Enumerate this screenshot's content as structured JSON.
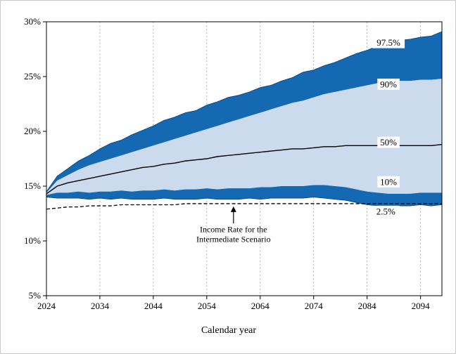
{
  "chart_data": {
    "type": "area",
    "title": "",
    "xlabel": "Calendar year",
    "ylabel": "",
    "xlim": [
      2024,
      2098
    ],
    "ylim": [
      5,
      30
    ],
    "grid": "vertical-dotted",
    "legend_position": "inline-labels",
    "x": [
      2024,
      2026,
      2028,
      2030,
      2032,
      2034,
      2036,
      2038,
      2040,
      2042,
      2044,
      2046,
      2048,
      2050,
      2052,
      2054,
      2056,
      2058,
      2060,
      2062,
      2064,
      2066,
      2068,
      2070,
      2072,
      2074,
      2076,
      2078,
      2080,
      2082,
      2084,
      2086,
      2088,
      2090,
      2092,
      2094,
      2096,
      2098
    ],
    "series": [
      {
        "name": "97.5%",
        "values": [
          14.5,
          15.9,
          16.6,
          17.3,
          17.8,
          18.4,
          18.9,
          19.2,
          19.7,
          20.1,
          20.5,
          21.0,
          21.3,
          21.7,
          21.9,
          22.4,
          22.7,
          23.1,
          23.3,
          23.6,
          24.0,
          24.2,
          24.6,
          24.9,
          25.4,
          25.6,
          26.0,
          26.3,
          26.7,
          27.1,
          27.4,
          27.8,
          28.0,
          28.3,
          28.4,
          28.6,
          28.7,
          29.1
        ]
      },
      {
        "name": "90%",
        "values": [
          14.4,
          15.5,
          16.0,
          16.5,
          16.9,
          17.2,
          17.5,
          17.8,
          18.1,
          18.4,
          18.7,
          19.0,
          19.3,
          19.6,
          19.9,
          20.2,
          20.5,
          20.8,
          21.1,
          21.4,
          21.7,
          22.0,
          22.3,
          22.6,
          22.8,
          23.1,
          23.4,
          23.6,
          23.8,
          24.0,
          24.2,
          24.4,
          24.5,
          24.6,
          24.6,
          24.7,
          24.7,
          24.8
        ]
      },
      {
        "name": "50%",
        "values": [
          14.3,
          15.0,
          15.3,
          15.5,
          15.7,
          15.9,
          16.1,
          16.3,
          16.5,
          16.7,
          16.8,
          17.0,
          17.1,
          17.3,
          17.4,
          17.5,
          17.7,
          17.8,
          17.9,
          18.0,
          18.1,
          18.2,
          18.3,
          18.4,
          18.4,
          18.5,
          18.6,
          18.6,
          18.7,
          18.7,
          18.7,
          18.7,
          18.7,
          18.7,
          18.7,
          18.7,
          18.7,
          18.8
        ]
      },
      {
        "name": "10%",
        "values": [
          14.2,
          14.4,
          14.4,
          14.5,
          14.4,
          14.5,
          14.5,
          14.6,
          14.5,
          14.6,
          14.6,
          14.7,
          14.6,
          14.7,
          14.7,
          14.8,
          14.7,
          14.8,
          14.8,
          14.8,
          14.9,
          14.9,
          15.0,
          15.0,
          15.0,
          15.1,
          15.1,
          15.0,
          14.9,
          14.7,
          14.5,
          14.4,
          14.3,
          14.3,
          14.3,
          14.4,
          14.4,
          14.4
        ]
      },
      {
        "name": "2.5%",
        "values": [
          14.0,
          13.9,
          13.9,
          13.9,
          13.8,
          13.9,
          13.8,
          13.9,
          13.8,
          13.8,
          13.8,
          13.9,
          13.8,
          13.8,
          13.8,
          13.9,
          13.8,
          13.8,
          13.8,
          13.9,
          13.8,
          13.9,
          13.9,
          13.9,
          13.9,
          14.0,
          13.9,
          13.8,
          13.7,
          13.5,
          13.3,
          13.2,
          13.1,
          13.2,
          13.2,
          13.3,
          13.2,
          13.3
        ]
      },
      {
        "name": "Income Rate for the Intermediate Scenario",
        "values": [
          12.9,
          13.0,
          13.1,
          13.1,
          13.2,
          13.2,
          13.2,
          13.3,
          13.3,
          13.3,
          13.3,
          13.3,
          13.3,
          13.4,
          13.4,
          13.4,
          13.4,
          13.4,
          13.4,
          13.4,
          13.4,
          13.4,
          13.4,
          13.4,
          13.4,
          13.4,
          13.4,
          13.4,
          13.4,
          13.4,
          13.4,
          13.4,
          13.4,
          13.4,
          13.4,
          13.4,
          13.4,
          13.4
        ]
      }
    ]
  },
  "axes": {
    "y_ticks": [
      {
        "value": 30,
        "label": "30%"
      },
      {
        "value": 25,
        "label": "25%"
      },
      {
        "value": 20,
        "label": "20%"
      },
      {
        "value": 15,
        "label": "15%"
      },
      {
        "value": 10,
        "label": "10%"
      },
      {
        "value": 5,
        "label": "5%"
      }
    ],
    "x_ticks": [
      {
        "value": 2024,
        "label": "2024"
      },
      {
        "value": 2034,
        "label": "2034"
      },
      {
        "value": 2044,
        "label": "2044"
      },
      {
        "value": 2054,
        "label": "2054"
      },
      {
        "value": 2064,
        "label": "2064"
      },
      {
        "value": 2074,
        "label": "2074"
      },
      {
        "value": 2084,
        "label": "2084"
      },
      {
        "value": 2094,
        "label": "2094"
      }
    ]
  },
  "percentile_labels": [
    {
      "text": "97.5%",
      "year": 2088,
      "value": 28.1
    },
    {
      "text": "90%",
      "year": 2088,
      "value": 24.3
    },
    {
      "text": "50%",
      "year": 2088,
      "value": 19.0
    },
    {
      "text": "10%",
      "year": 2088,
      "value": 15.4
    },
    {
      "text": "2.5%",
      "year": 2087.5,
      "value": 12.7
    }
  ],
  "annotation": {
    "line1": "Income Rate for the",
    "line2": "Intermediate Scenario",
    "year": 2059,
    "text_value": 10.8,
    "arrow_tail_value": 11.6,
    "arrow_tip_value": 13.15
  },
  "colors": {
    "dark_blue": "#1569b3",
    "light_blue": "#ccdaee",
    "line_black": "#000000",
    "grid_gray": "#9a9a9a"
  }
}
